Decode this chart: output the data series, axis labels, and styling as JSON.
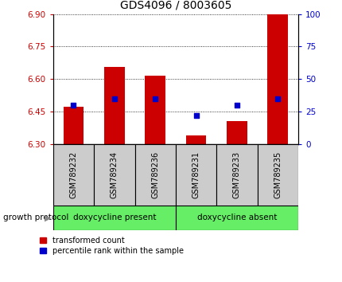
{
  "title": "GDS4096 / 8003605",
  "samples": [
    "GSM789232",
    "GSM789234",
    "GSM789236",
    "GSM789231",
    "GSM789233",
    "GSM789235"
  ],
  "bar_values": [
    6.47,
    6.655,
    6.615,
    6.34,
    6.405,
    6.9
  ],
  "bar_bottom": 6.3,
  "blue_percentiles": [
    30,
    35,
    35,
    22,
    30,
    35
  ],
  "ylim_left": [
    6.3,
    6.9
  ],
  "ylim_right": [
    0,
    100
  ],
  "yticks_left": [
    6.3,
    6.45,
    6.6,
    6.75,
    6.9
  ],
  "yticks_right": [
    0,
    25,
    50,
    75,
    100
  ],
  "bar_color": "#cc0000",
  "blue_color": "#0000cc",
  "group1_label": "doxycycline present",
  "group2_label": "doxycycline absent",
  "group1_indices": [
    0,
    1,
    2
  ],
  "group2_indices": [
    3,
    4,
    5
  ],
  "group_bg_color": "#66ee66",
  "xlabel_label": "growth protocol",
  "legend_red": "transformed count",
  "legend_blue": "percentile rank within the sample",
  "tick_label_color_left": "#cc0000",
  "tick_label_color_right": "#0000cc",
  "label_box_color": "#cccccc",
  "fig_width": 4.31,
  "fig_height": 3.54,
  "dpi": 100
}
